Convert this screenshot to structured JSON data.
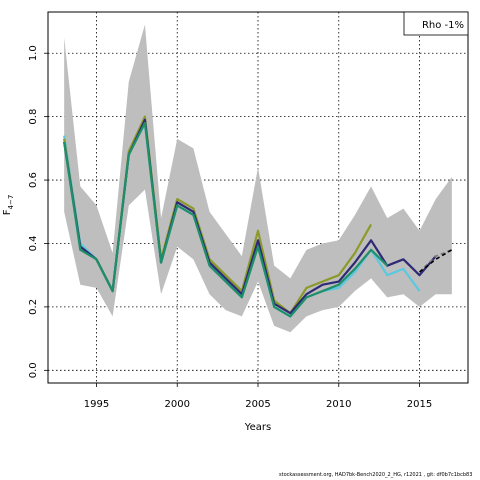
{
  "chart_data": {
    "type": "line",
    "xlabel": "Years",
    "ylabel_main": "F",
    "ylabel_sub": "4−7",
    "xlim": [
      1992,
      2018
    ],
    "ylim": [
      -0.04,
      1.13
    ],
    "xticks": [
      1995,
      2000,
      2005,
      2010,
      2015
    ],
    "yticks": [
      0.0,
      0.2,
      0.4,
      0.6,
      0.8,
      1.0
    ],
    "grid": true,
    "legend_text": "Rho -1%",
    "legend_position": "top-right",
    "band": {
      "color": "#bebebe",
      "x": [
        1993,
        1994,
        1995,
        1996,
        1997,
        1998,
        1999,
        2000,
        2001,
        2002,
        2003,
        2004,
        2005,
        2006,
        2007,
        2008,
        2009,
        2010,
        2011,
        2012,
        2013,
        2014,
        2015,
        2016,
        2017
      ],
      "upper": [
        1.05,
        0.58,
        0.52,
        0.37,
        0.91,
        1.09,
        0.48,
        0.73,
        0.7,
        0.5,
        0.43,
        0.36,
        0.64,
        0.33,
        0.29,
        0.38,
        0.4,
        0.41,
        0.49,
        0.58,
        0.48,
        0.51,
        0.44,
        0.54,
        0.61
      ],
      "lower": [
        0.5,
        0.27,
        0.26,
        0.17,
        0.52,
        0.57,
        0.24,
        0.39,
        0.35,
        0.24,
        0.19,
        0.17,
        0.28,
        0.14,
        0.12,
        0.17,
        0.19,
        0.2,
        0.25,
        0.29,
        0.23,
        0.24,
        0.2,
        0.24,
        0.24
      ]
    },
    "series": [
      {
        "color": "#5bc8e0",
        "x": [
          1993,
          1994,
          1995,
          1996,
          1997,
          1998,
          1999,
          2000,
          2001,
          2002,
          2003,
          2004,
          2005,
          2006,
          2007,
          2008,
          2009,
          2010,
          2011,
          2012,
          2013,
          2014,
          2015
        ],
        "values": [
          0.74,
          0.4,
          0.35,
          0.25,
          0.68,
          0.78,
          0.34,
          0.52,
          0.49,
          0.34,
          0.28,
          0.23,
          0.39,
          0.2,
          0.17,
          0.23,
          0.25,
          0.26,
          0.31,
          0.38,
          0.3,
          0.32,
          0.25
        ]
      },
      {
        "color": "#8c9a2a",
        "x": [
          1993,
          1994,
          1995,
          1996,
          1997,
          1998,
          1999,
          2000,
          2001,
          2002,
          2003,
          2004,
          2005,
          2006,
          2007,
          2008,
          2009,
          2010,
          2011,
          2012
        ],
        "values": [
          0.73,
          0.39,
          0.35,
          0.25,
          0.69,
          0.8,
          0.35,
          0.54,
          0.51,
          0.35,
          0.3,
          0.25,
          0.44,
          0.22,
          0.18,
          0.26,
          0.28,
          0.3,
          0.37,
          0.46
        ]
      },
      {
        "color": "#2e2a75",
        "x": [
          1993,
          1994,
          1995,
          1996,
          1997,
          1998,
          1999,
          2000,
          2001,
          2002,
          2003,
          2004,
          2005,
          2006,
          2007,
          2008,
          2009,
          2010,
          2011,
          2012,
          2013,
          2014,
          2015,
          2016
        ],
        "values": [
          0.72,
          0.39,
          0.35,
          0.25,
          0.68,
          0.79,
          0.34,
          0.53,
          0.5,
          0.34,
          0.29,
          0.24,
          0.41,
          0.21,
          0.18,
          0.24,
          0.27,
          0.28,
          0.34,
          0.41,
          0.33,
          0.35,
          0.3,
          0.36
        ]
      },
      {
        "color": "#1f8f6a",
        "x": [
          1993,
          1994,
          1995,
          1996,
          1997,
          1998,
          1999,
          2000,
          2001,
          2002,
          2003,
          2004,
          2005,
          2006,
          2007,
          2008,
          2009,
          2010,
          2011,
          2012,
          2013
        ],
        "values": [
          0.72,
          0.38,
          0.35,
          0.25,
          0.68,
          0.78,
          0.34,
          0.52,
          0.49,
          0.33,
          0.28,
          0.23,
          0.39,
          0.2,
          0.17,
          0.23,
          0.25,
          0.27,
          0.32,
          0.38,
          0.33
        ]
      },
      {
        "color": "#7a7a7a",
        "dashed": true,
        "x": [
          2015,
          2016,
          2017
        ],
        "values": [
          0.31,
          0.36,
          0.38
        ]
      },
      {
        "color": "#000000",
        "dashed": true,
        "x": [
          2015,
          2016,
          2017
        ],
        "values": [
          0.31,
          0.35,
          0.38
        ]
      }
    ]
  },
  "footer_text": "stockassessment.org, HAD7bk-Bench2020_2_HG, r12021 , git: df0b7c1bcb83"
}
